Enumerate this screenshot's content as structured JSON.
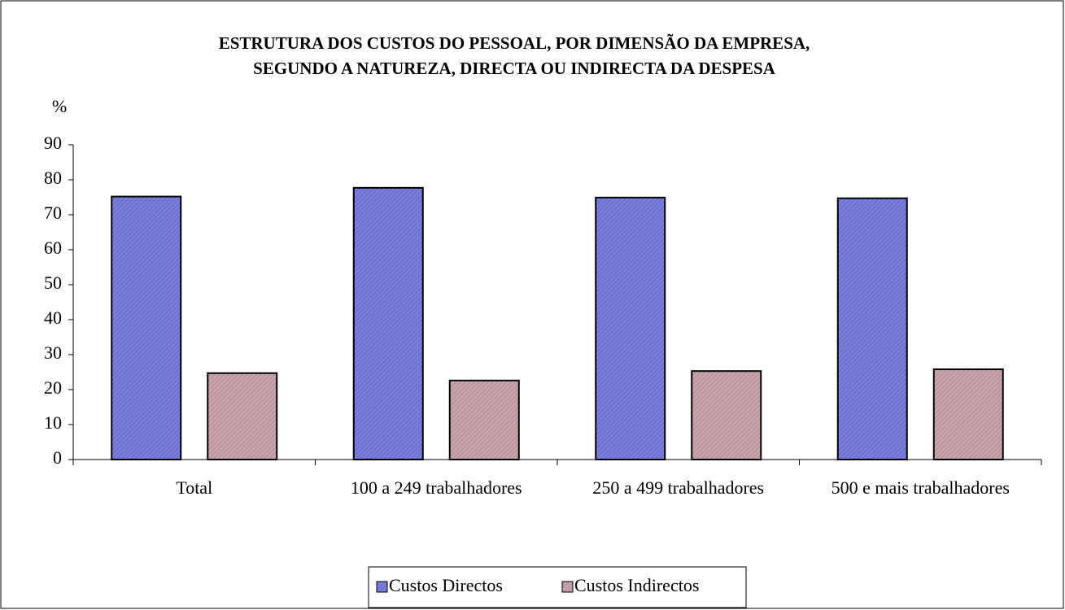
{
  "chart_data": {
    "type": "bar",
    "title": [
      "ESTRUTURA DOS CUSTOS DO PESSOAL, POR DIMENSÃO DA EMPRESA,",
      "SEGUNDO A NATUREZA, DIRECTA OU INDIRECTA DA DESPESA"
    ],
    "y_label": "%",
    "categories": [
      "Total",
      "100 a 249 trabalhadores",
      "250 a 499 trabalhadores",
      "500 e mais trabalhadores"
    ],
    "series": [
      {
        "name": "Custos Directos",
        "color": "#7b7fdb",
        "values": [
          75.2,
          77.7,
          74.9,
          74.7
        ]
      },
      {
        "name": "Custos Indirectos",
        "color": "#c9a4ad",
        "values": [
          24.7,
          22.6,
          25.3,
          25.8
        ]
      }
    ],
    "ylim": [
      0,
      90
    ],
    "yticks": [
      0,
      10,
      20,
      30,
      40,
      50,
      60,
      70,
      80,
      90
    ],
    "grid": false,
    "legend": "bottom"
  }
}
